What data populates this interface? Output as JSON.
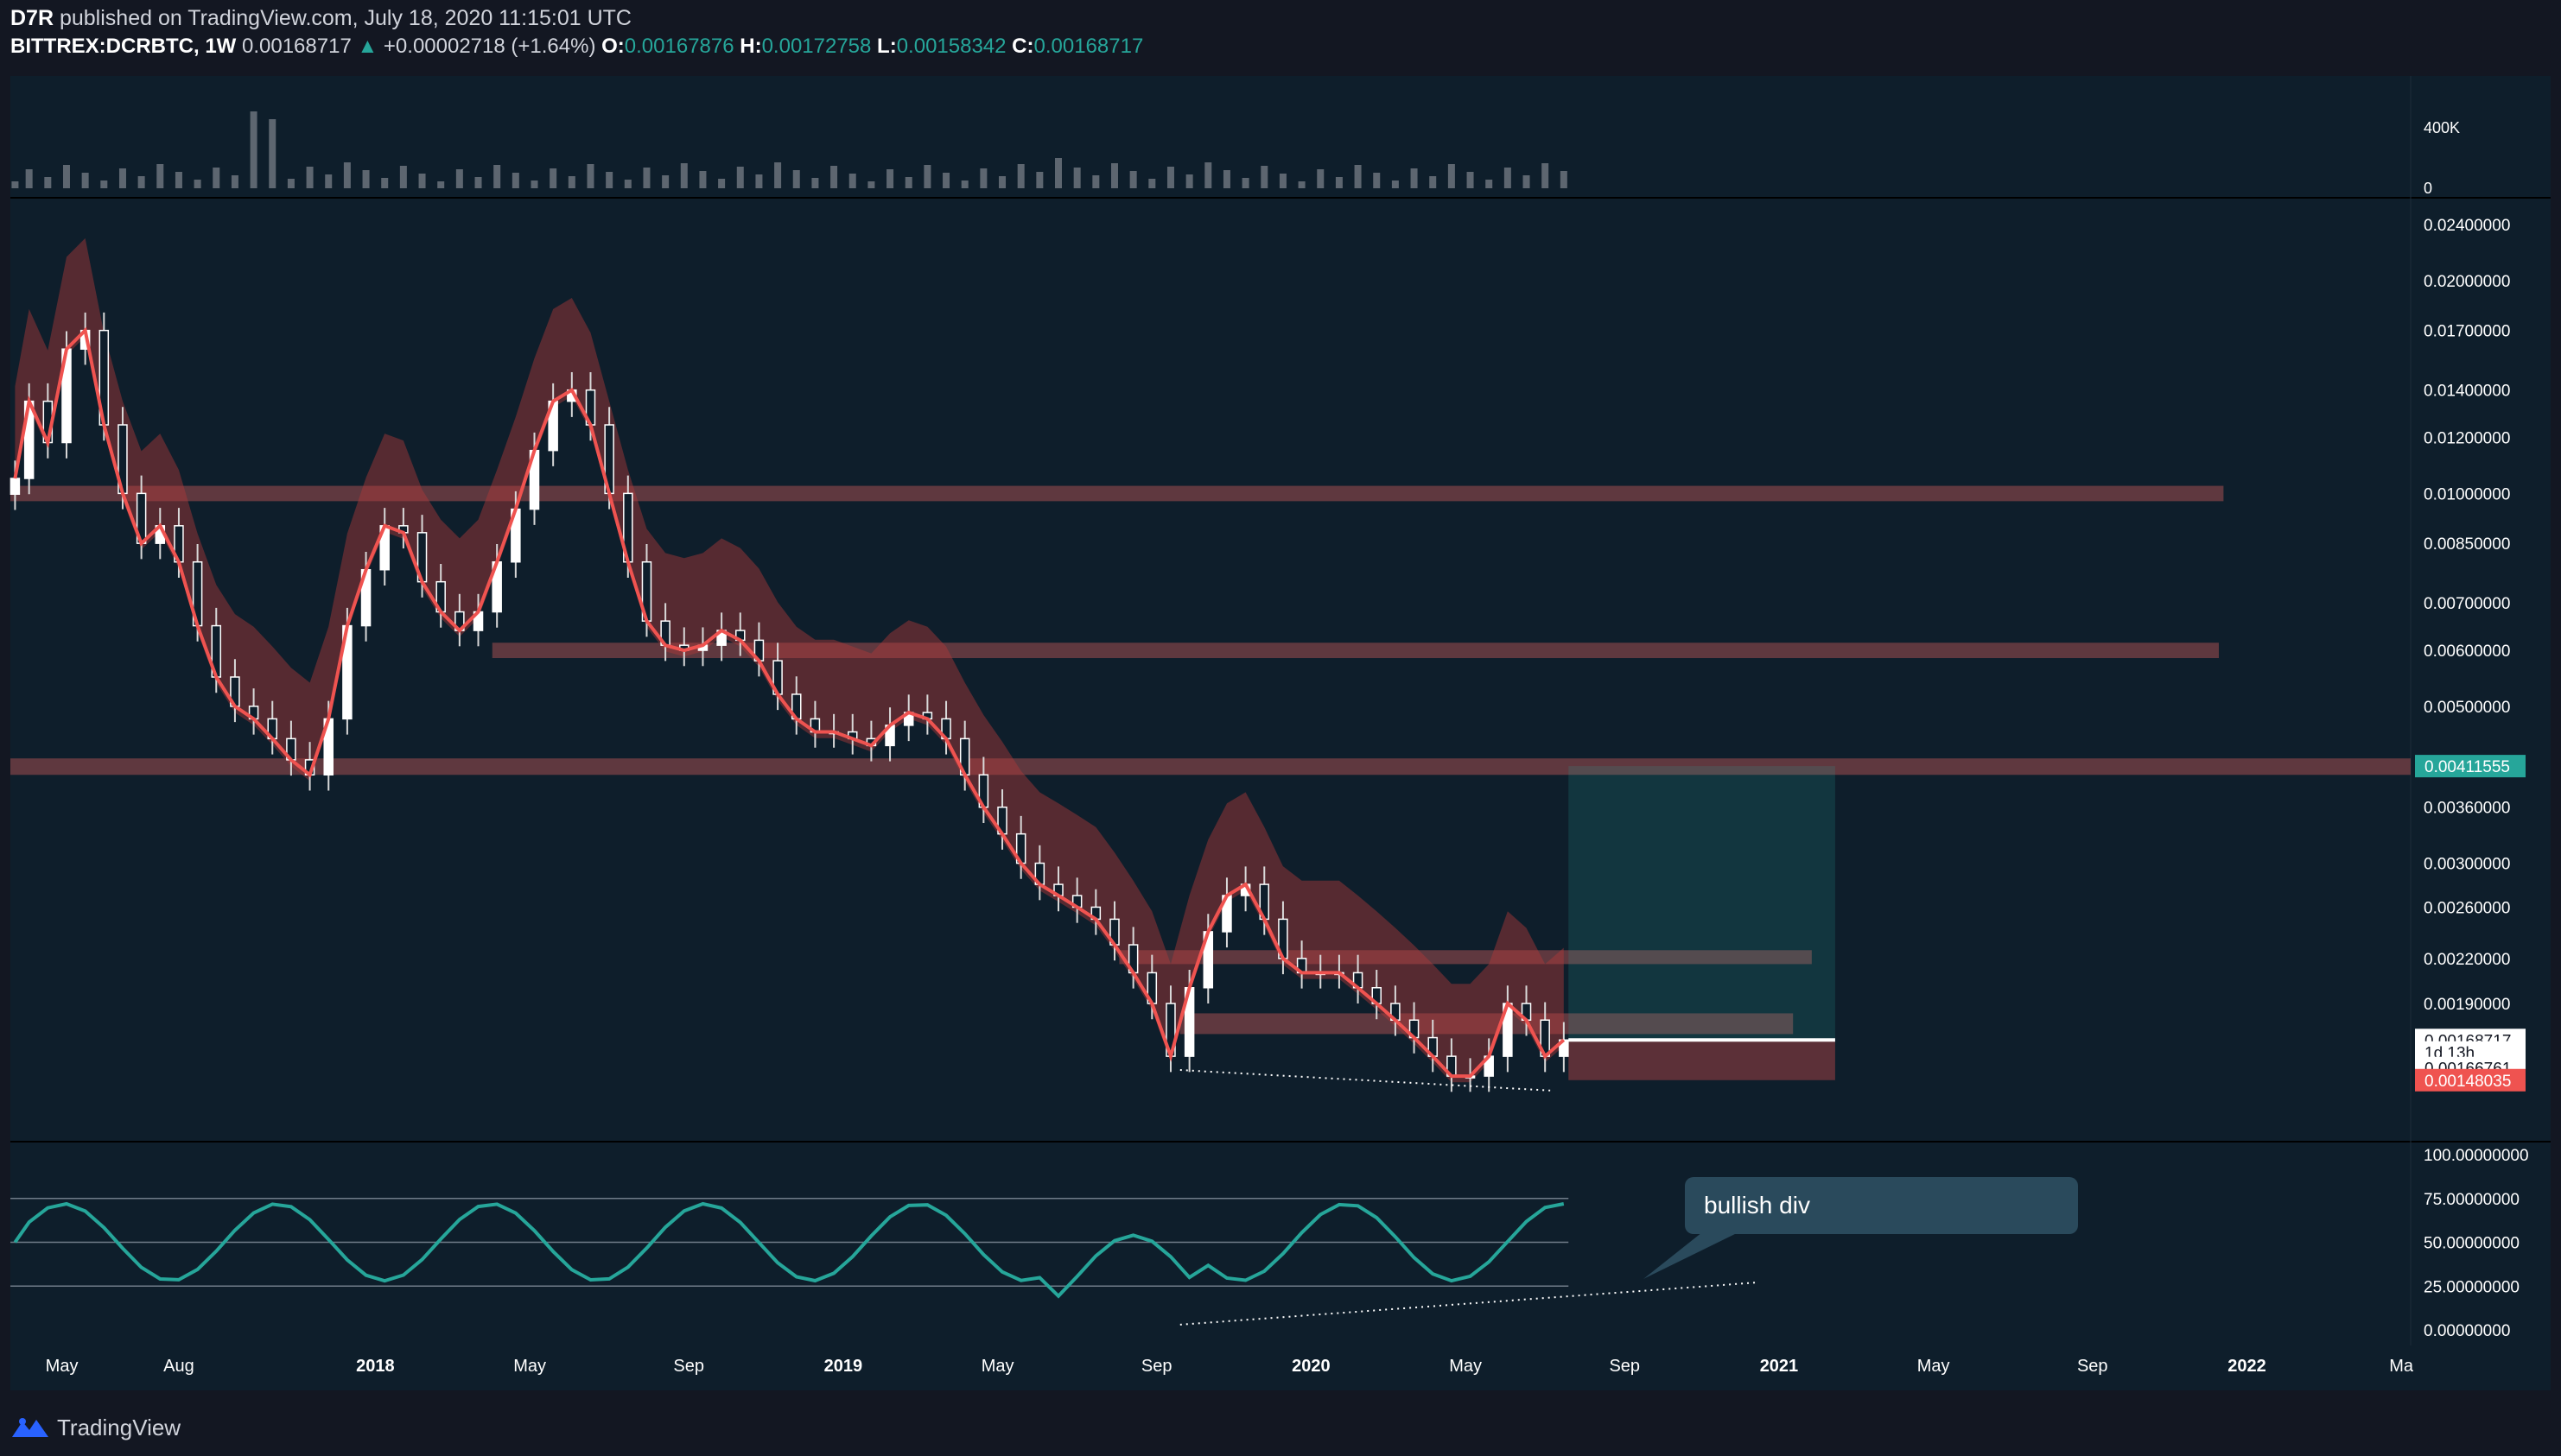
{
  "header": {
    "author": "D7R",
    "published": "published on TradingView.com, July 18, 2020 11:15:01 UTC",
    "symbol": "BITTREX:DCRBTC, 1W",
    "last": "0.00168717",
    "change_arrow": "▲",
    "change": "+0.00002718 (+1.64%)",
    "o_label": "O:",
    "open": "0.00167876",
    "h_label": "H:",
    "high": "0.00172758",
    "l_label": "L:",
    "low": "0.00158342",
    "c_label": "C:",
    "close": "0.00168717"
  },
  "footer": {
    "brand": "TradingView",
    "logo_icon": "tradingview-logo-icon"
  },
  "colors": {
    "background": "#0e1e2b",
    "bull": "#26a69a",
    "bear": "#ef5350",
    "zone": "#8c4649",
    "frame": "#131722"
  },
  "chart_data": [
    {
      "type": "line",
      "pane": "volume",
      "ylim": [
        0,
        400000
      ],
      "y_ticks": [
        "400K",
        "0"
      ],
      "y_tick_values": [
        400000,
        0
      ]
    },
    {
      "type": "line",
      "pane": "price",
      "scale": "log",
      "y_ticks": [
        "0.02400000",
        "0.02000000",
        "0.01700000",
        "0.01400000",
        "0.01200000",
        "0.01000000",
        "0.00850000",
        "0.00700000",
        "0.00600000",
        "0.00500000",
        "0.00360000",
        "0.00300000",
        "0.00260000",
        "0.00220000",
        "0.00190000"
      ],
      "y_tick_values": [
        0.024,
        0.02,
        0.017,
        0.014,
        0.012,
        0.01,
        0.0085,
        0.007,
        0.006,
        0.005,
        0.0036,
        0.003,
        0.0026,
        0.0022,
        0.0019
      ],
      "x_ticks": [
        "May",
        "Aug",
        "2018",
        "May",
        "Sep",
        "2019",
        "May",
        "Sep",
        "2020",
        "May",
        "Sep",
        "2021",
        "May",
        "Sep",
        "2022",
        "Ma"
      ],
      "x_tick_values": [
        2017.33,
        2017.58,
        2018.0,
        2018.33,
        2018.67,
        2019.0,
        2019.33,
        2019.67,
        2020.0,
        2020.33,
        2020.67,
        2021.0,
        2021.33,
        2021.67,
        2022.0,
        2022.33
      ],
      "xlim": [
        2017.22,
        2022.35
      ],
      "series": [
        {
          "x": [
            2017.23,
            2017.26,
            2017.3,
            2017.34,
            2017.38,
            2017.42,
            2017.46,
            2017.5,
            2017.54,
            2017.58,
            2017.62,
            2017.66,
            2017.7,
            2017.74,
            2017.78,
            2017.82,
            2017.86,
            2017.9,
            2017.94,
            2017.98,
            2018.02,
            2018.06,
            2018.1,
            2018.14,
            2018.18,
            2018.22,
            2018.26,
            2018.3,
            2018.34,
            2018.38,
            2018.42,
            2018.46,
            2018.5,
            2018.54,
            2018.58,
            2018.62,
            2018.66,
            2018.7,
            2018.74,
            2018.78,
            2018.82,
            2018.86,
            2018.9,
            2018.94,
            2018.98,
            2019.02,
            2019.06,
            2019.1,
            2019.14,
            2019.18,
            2019.22,
            2019.26,
            2019.3,
            2019.34,
            2019.38,
            2019.42,
            2019.46,
            2019.5,
            2019.54,
            2019.58,
            2019.62,
            2019.66,
            2019.7,
            2019.74,
            2019.78,
            2019.82,
            2019.86,
            2019.9,
            2019.94,
            2019.98,
            2020.02,
            2020.06,
            2020.1,
            2020.14,
            2020.18,
            2020.22,
            2020.26,
            2020.3,
            2020.34,
            2020.38,
            2020.42,
            2020.46,
            2020.5,
            2020.54
          ],
          "values": [
            0.0105,
            0.0135,
            0.0118,
            0.016,
            0.017,
            0.0125,
            0.01,
            0.0085,
            0.009,
            0.008,
            0.0065,
            0.0055,
            0.005,
            0.0048,
            0.0045,
            0.0042,
            0.004,
            0.0048,
            0.0065,
            0.0078,
            0.009,
            0.0088,
            0.0075,
            0.0068,
            0.0064,
            0.0068,
            0.008,
            0.0095,
            0.0115,
            0.0135,
            0.014,
            0.0125,
            0.01,
            0.008,
            0.0066,
            0.0061,
            0.006,
            0.0061,
            0.0064,
            0.0062,
            0.0058,
            0.0052,
            0.0048,
            0.0046,
            0.0046,
            0.0045,
            0.0044,
            0.0047,
            0.0049,
            0.0048,
            0.0045,
            0.004,
            0.0036,
            0.0033,
            0.003,
            0.0028,
            0.0027,
            0.0026,
            0.0025,
            0.0023,
            0.0021,
            0.0019,
            0.0016,
            0.002,
            0.0024,
            0.0027,
            0.0028,
            0.0025,
            0.0022,
            0.0021,
            0.0021,
            0.0021,
            0.002,
            0.0019,
            0.0018,
            0.0017,
            0.0016,
            0.0015,
            0.0015,
            0.0016,
            0.0019,
            0.0018,
            0.0016,
            0.00168717
          ]
        }
      ],
      "price_labels": [
        {
          "label": "0.00411555",
          "value": 0.00411555,
          "color": "#26a69a"
        },
        {
          "label": "0.00168717",
          "value": 0.00168717,
          "color": "#ffffff"
        },
        {
          "label": "1d 13h",
          "value": 0.00162,
          "color": "#ffffff"
        },
        {
          "label": "0.00166761",
          "value": 0.00154,
          "color": "#ffffff"
        },
        {
          "label": "0.00148035",
          "value": 0.00148035,
          "color": "#ef5350"
        }
      ],
      "zones": [
        {
          "from": 0.00975,
          "to": 0.01025,
          "x_start": 2017.22,
          "x_end": 2021.95
        },
        {
          "from": 0.00585,
          "to": 0.00615,
          "x_start": 2018.25,
          "x_end": 2021.94
        },
        {
          "from": 0.004,
          "to": 0.00422,
          "x_start": 2017.22,
          "x_end": 2022.35
        },
        {
          "from": 0.00216,
          "to": 0.00226,
          "x_start": 2019.59,
          "x_end": 2021.07
        },
        {
          "from": 0.00172,
          "to": 0.00184,
          "x_start": 2019.72,
          "x_end": 2021.03
        }
      ],
      "position": {
        "entry": 0.00168717,
        "target": 0.00411555,
        "stop": 0.00148035,
        "x_start": 2020.55,
        "x_end": 2021.12
      }
    },
    {
      "type": "line",
      "pane": "oscillator",
      "ylim": [
        0,
        100
      ],
      "y_ticks": [
        "100.00000000",
        "75.00000000",
        "50.00000000",
        "25.00000000",
        "0.00000000"
      ],
      "y_tick_values": [
        100,
        75,
        50,
        25,
        0
      ],
      "annotations": [
        "bullish div"
      ]
    }
  ]
}
